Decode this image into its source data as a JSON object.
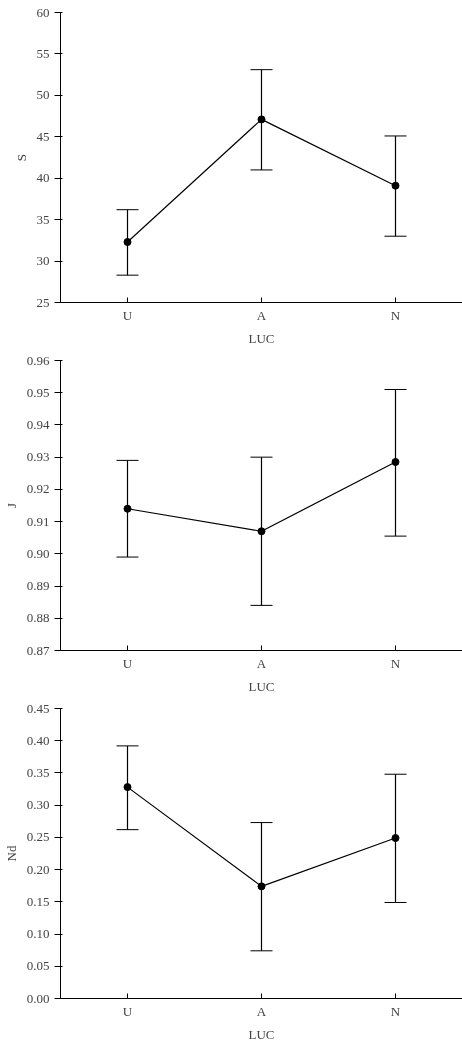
{
  "chart_data": [
    {
      "type": "line",
      "categories": [
        "U",
        "A",
        "N"
      ],
      "xlabel": "LUC",
      "ylabel": "S",
      "marker": "circle",
      "line_style": "solid",
      "grid": false,
      "ylim": [
        25,
        60
      ],
      "yticks": [
        25,
        30,
        35,
        40,
        45,
        50,
        55,
        60
      ],
      "series": [
        {
          "color": "#000000",
          "values": [
            32.3,
            47.1,
            39.1
          ],
          "errors": [
            [
              28.3,
              36.2
            ],
            [
              41.0,
              53.1
            ],
            [
              33.0,
              45.1
            ]
          ]
        }
      ]
    },
    {
      "type": "line",
      "categories": [
        "U",
        "A",
        "N"
      ],
      "xlabel": "LUC",
      "ylabel": "J",
      "marker": "circle",
      "line_style": "solid",
      "grid": false,
      "ylim": [
        0.87,
        0.96
      ],
      "yticks": [
        {
          "value": 0.87,
          "label": "0.87"
        },
        {
          "value": 0.88,
          "label": "0.88"
        },
        {
          "value": 0.89,
          "label": "0.89"
        },
        {
          "value": 0.9,
          "label": "0.90"
        },
        {
          "value": 0.91,
          "label": "0.91"
        },
        {
          "value": 0.92,
          "label": "0.92"
        },
        {
          "value": 0.93,
          "label": "0.93"
        },
        {
          "value": 0.94,
          "label": "0.94"
        },
        {
          "value": 0.95,
          "label": "0.95"
        },
        {
          "value": 0.96,
          "label": "0.96"
        }
      ],
      "series": [
        {
          "color": "#000000",
          "values": [
            0.914,
            0.907,
            0.9285
          ],
          "errors": [
            [
              0.899,
              0.929
            ],
            [
              0.884,
              0.93
            ],
            [
              0.9055,
              0.951
            ]
          ]
        }
      ]
    },
    {
      "type": "line",
      "categories": [
        "U",
        "A",
        "N"
      ],
      "xlabel": "LUC",
      "ylabel": "Nd",
      "marker": "circle",
      "line_style": "solid",
      "grid": false,
      "ylim": [
        0,
        0.45
      ],
      "yticks": [
        {
          "value": 0,
          "label": "0.00"
        },
        {
          "value": 0.05,
          "label": "0.05"
        },
        {
          "value": 0.1,
          "label": "0.10"
        },
        {
          "value": 0.15,
          "label": "0.15"
        },
        {
          "value": 0.2,
          "label": "0.20"
        },
        {
          "value": 0.25,
          "label": "0.25"
        },
        {
          "value": 0.3,
          "label": "0.30"
        },
        {
          "value": 0.35,
          "label": "0.35"
        },
        {
          "value": 0.4,
          "label": "0.40"
        },
        {
          "value": 0.45,
          "label": "0.45"
        }
      ],
      "series": [
        {
          "color": "#000000",
          "values": [
            0.328,
            0.174,
            0.249
          ],
          "errors": [
            [
              0.262,
              0.392
            ],
            [
              0.074,
              0.273
            ],
            [
              0.149,
              0.348
            ]
          ]
        }
      ]
    }
  ]
}
